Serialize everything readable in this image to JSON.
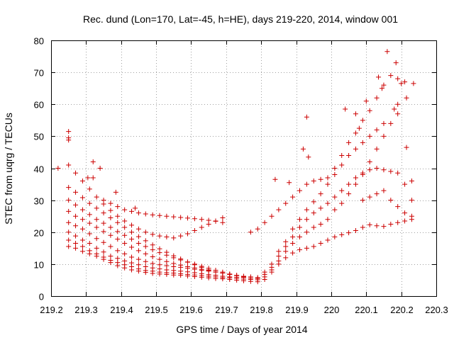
{
  "chart_data": {
    "type": "scatter",
    "title": "Rec. dund (Lon=170, Lat=-45, h=HE), days 219-220, 2014, window 001",
    "xlabel": "GPS time / Days of year 2014",
    "ylabel": "STEC from uqrg / TECUs",
    "xlim": [
      219.2,
      220.3
    ],
    "ylim": [
      0,
      80
    ],
    "xticks": [
      "219.2",
      "219.3",
      "219.4",
      "219.5",
      "219.6",
      "219.7",
      "219.8",
      "219.9",
      "220",
      "220.1",
      "220.2",
      "220.3"
    ],
    "yticks": [
      "0",
      "10",
      "20",
      "30",
      "40",
      "50",
      "60",
      "70",
      "80"
    ],
    "grid": true,
    "marker": "plus",
    "color": "#cc0000",
    "series": [
      {
        "name": "",
        "tracks": [
          {
            "x": [
              219.25,
              219.27,
              219.29,
              219.31,
              219.33,
              219.35,
              219.37,
              219.39,
              219.41,
              219.43,
              219.45,
              219.47,
              219.49,
              219.51,
              219.53,
              219.55,
              219.57,
              219.59,
              219.61,
              219.63,
              219.65,
              219.67,
              219.69,
              219.71,
              219.73,
              219.75,
              219.77,
              219.79,
              219.81,
              219.83,
              219.85,
              219.87,
              219.89,
              219.91,
              219.93,
              219.95,
              219.97,
              219.99,
              220.01,
              220.03,
              220.05,
              220.07,
              220.09,
              220.11,
              220.13,
              220.15,
              220.17,
              220.19,
              220.21,
              220.23
            ],
            "y": [
              15.5,
              15,
              14,
              13.2,
              12.5,
              11.5,
              10.5,
              9.5,
              8.8,
              8.2,
              7.8,
              7.4,
              7.1,
              6.9,
              6.8,
              6.6,
              6.5,
              6.3,
              6.1,
              5.9,
              5.7,
              5.5,
              5.4,
              5.2,
              5.0,
              4.8,
              4.6,
              4.5,
              5.2,
              7.5,
              10,
              12,
              13.5,
              14.5,
              15,
              15.5,
              16.5,
              17.5,
              18.5,
              19.2,
              19.8,
              20.5,
              21.5,
              22.3,
              22.0,
              21.8,
              22.5,
              23,
              23.5,
              24
            ]
          },
          {
            "x": [
              219.25,
              219.27,
              219.29,
              219.31,
              219.33,
              219.35,
              219.37,
              219.39,
              219.41,
              219.43,
              219.45,
              219.47,
              219.49,
              219.51,
              219.53,
              219.55,
              219.57,
              219.59,
              219.61,
              219.63,
              219.65,
              219.67,
              219.69,
              219.71,
              219.73,
              219.75,
              219.77,
              219.79,
              219.81,
              219.83,
              219.85,
              219.87,
              219.89,
              219.91,
              219.93,
              219.95,
              219.97,
              219.99
            ],
            "y": [
              17.5,
              16.5,
              15.5,
              14.2,
              13.2,
              12.2,
              11.2,
              10.5,
              9.8,
              9.2,
              8.5,
              8.0,
              7.8,
              7.5,
              7.3,
              7.2,
              7.0,
              6.8,
              6.6,
              6.4,
              6.2,
              6.0,
              5.8,
              5.7,
              5.5,
              5.3,
              5.2,
              5.1,
              6.0,
              8.2,
              11,
              14,
              16.5,
              18.5,
              20,
              21.5,
              22.5,
              24
            ]
          },
          {
            "x": [
              219.25,
              219.27,
              219.29,
              219.31,
              219.33,
              219.35,
              219.37,
              219.39,
              219.41,
              219.43,
              219.45,
              219.47,
              219.49,
              219.51,
              219.53,
              219.55,
              219.57,
              219.59,
              219.61,
              219.63,
              219.65,
              219.67,
              219.69,
              219.71,
              219.73,
              219.75,
              219.77,
              219.79,
              219.81,
              219.83,
              219.85,
              219.87,
              219.89,
              219.91,
              219.93,
              219.95,
              219.97,
              219.99,
              220.01,
              220.03,
              220.05,
              220.07,
              220.09,
              220.11,
              220.13,
              220.15,
              220.17,
              220.19
            ],
            "y": [
              20,
              18.8,
              17.5,
              16.5,
              15.0,
              13.8,
              12.5,
              11.8,
              11.0,
              10.4,
              9.8,
              9.2,
              8.8,
              8.5,
              8.2,
              8.0,
              7.8,
              7.6,
              7.3,
              7.0,
              6.7,
              6.5,
              6.2,
              6.0,
              5.9,
              5.8,
              5.6,
              5.5,
              6.8,
              9,
              12.5,
              15.5,
              18.5,
              21.5,
              24,
              26,
              27.5,
              29,
              31,
              33,
              35,
              37,
              38.5,
              39.5,
              40,
              39.5,
              39,
              38.5
            ]
          },
          {
            "x": [
              219.25,
              219.27,
              219.29,
              219.31,
              219.33,
              219.35,
              219.37,
              219.39,
              219.41,
              219.43,
              219.45,
              219.47,
              219.49,
              219.51,
              219.53,
              219.55,
              219.57,
              219.59,
              219.61,
              219.63,
              219.65,
              219.67,
              219.69,
              219.71,
              219.73,
              219.75,
              219.77,
              219.79,
              219.81,
              219.83,
              219.85,
              219.87,
              219.89,
              219.91,
              219.93,
              219.95,
              219.97,
              219.99,
              220.01,
              220.03,
              220.05,
              220.07,
              220.09,
              220.11,
              220.13,
              220.15
            ],
            "y": [
              23,
              22,
              21,
              19.5,
              18.0,
              16.8,
              15.5,
              14.2,
              13.2,
              12.2,
              11.5,
              10.8,
              10.2,
              9.8,
              9.5,
              9.2,
              9.0,
              8.7,
              8.4,
              8.1,
              7.8,
              7.5,
              7.2,
              6.8,
              6.5,
              6.2,
              6.0,
              5.8,
              7.5,
              10,
              14,
              17,
              21,
              24,
              27,
              29.5,
              32,
              35,
              38,
              41,
              44,
              46,
              48,
              50,
              52,
              54
            ]
          },
          {
            "x": [
              219.25,
              219.27,
              219.29,
              219.31,
              219.33,
              219.35,
              219.37,
              219.39,
              219.41,
              219.43,
              219.45,
              219.47,
              219.49,
              219.51,
              219.53,
              219.55,
              219.57,
              219.59,
              219.61,
              219.63,
              219.65,
              219.67,
              219.69,
              219.71,
              219.73,
              219.75
            ],
            "y": [
              26.5,
              25.0,
              24,
              22.8,
              21.5,
              20.2,
              19.0,
              17.8,
              16.5,
              15.3,
              14.2,
              13.2,
              12.3,
              11.5,
              10.8,
              10.2,
              9.7,
              9.2,
              8.8,
              8.4,
              8.0,
              7.6,
              7.2,
              6.8,
              6.4,
              6.0
            ]
          },
          {
            "x": [
              219.25,
              219.27,
              219.29,
              219.31,
              219.33,
              219.35,
              219.37,
              219.39,
              219.41,
              219.43,
              219.45,
              219.47,
              219.49,
              219.51,
              219.53,
              219.55,
              219.57,
              219.59,
              219.61,
              219.63,
              219.65,
              219.67,
              219.69,
              219.71
            ],
            "y": [
              30,
              28.5,
              27,
              25.5,
              24.0,
              22.8,
              21.5,
              20.2,
              19.0,
              17.8,
              16.5,
              15.5,
              14.5,
              13.6,
              12.8,
              12.0,
              11.3,
              10.6,
              10.0,
              9.3,
              8.7,
              8.1,
              7.5,
              6.9
            ]
          },
          {
            "x": [
              219.25,
              219.27,
              219.29,
              219.31,
              219.33,
              219.35,
              219.37,
              219.39,
              219.41,
              219.43,
              219.45,
              219.47,
              219.49,
              219.51,
              219.53,
              219.55,
              219.57,
              219.59,
              219.61,
              219.63,
              219.65
            ],
            "y": [
              34,
              32.5,
              30.8,
              29,
              27.5,
              26.0,
              24.5,
              23.0,
              21.5,
              20.0,
              18.6,
              17.3,
              16.0,
              14.8,
              13.7,
              12.6,
              11.6,
              10.7,
              9.8,
              9.0,
              8.2
            ]
          },
          {
            "x": [
              219.25,
              219.27,
              219.29,
              219.31,
              219.33,
              219.35,
              219.37,
              219.39,
              219.41,
              219.43,
              219.45,
              219.47,
              219.49,
              219.51,
              219.53,
              219.55,
              219.57,
              219.59,
              219.61,
              219.63,
              219.65,
              219.67,
              219.69
            ],
            "y": [
              41,
              38.5,
              36,
              33.5,
              31.0,
              28.8,
              26.8,
              25.0,
              23.5,
              22.2,
              21.0,
              20.0,
              19.3,
              18.8,
              18.5,
              18.2,
              18.8,
              19.5,
              20.5,
              21.5,
              22.5,
              23.5,
              24.5
            ]
          },
          {
            "x": [
              219.35,
              219.37,
              219.39,
              219.41,
              219.43,
              219.45,
              219.47,
              219.49,
              219.51,
              219.53,
              219.55,
              219.57,
              219.59,
              219.61,
              219.63,
              219.65,
              219.67,
              219.69
            ],
            "y": [
              30,
              29,
              28,
              27,
              26.5,
              26,
              25.7,
              25.4,
              25.2,
              25,
              24.8,
              24.6,
              24.4,
              24.2,
              24.0,
              23.7,
              23.4,
              23.0
            ]
          },
          {
            "x": [
              219.77,
              219.79,
              219.81,
              219.83,
              219.85,
              219.87,
              219.89,
              219.91,
              219.93,
              219.95,
              219.97,
              219.99,
              220.01,
              220.03,
              220.05,
              220.07,
              220.09,
              220.11,
              220.13,
              220.15,
              220.17,
              220.19,
              220.21
            ],
            "y": [
              20,
              21,
              23,
              25,
              27,
              29,
              31,
              33,
              35,
              36,
              36.5,
              37,
              40,
              44,
              48,
              51,
              55,
              58,
              62,
              66,
              69,
              68,
              67
            ]
          },
          {
            "x": [
              220.01,
              220.03,
              220.05,
              220.07,
              220.09,
              220.11,
              220.13,
              220.15,
              220.17,
              220.19,
              220.21,
              220.23
            ],
            "y": [
              27,
              29,
              32,
              35,
              38,
              42,
              46,
              50,
              54,
              57,
              35,
              30
            ]
          },
          {
            "x": [
              220.09,
              220.11,
              220.13,
              220.15,
              220.17,
              220.19,
              220.21,
              220.23
            ],
            "y": [
              30,
              31,
              32,
              33,
              30,
              28,
              26,
              25
            ]
          }
        ],
        "points": [
          [
            219.25,
            49.5
          ],
          [
            219.25,
            51.5
          ],
          [
            219.25,
            48.8
          ],
          [
            219.32,
            42
          ],
          [
            219.34,
            40
          ],
          [
            219.22,
            40
          ],
          [
            219.32,
            37
          ],
          [
            219.305,
            37
          ],
          [
            219.385,
            32.5
          ],
          [
            219.44,
            27.5
          ],
          [
            219.92,
            46
          ],
          [
            219.93,
            56
          ],
          [
            219.935,
            43.5
          ],
          [
            219.88,
            35.5
          ],
          [
            219.84,
            36.5
          ],
          [
            220.16,
            76.5
          ],
          [
            220.185,
            73
          ],
          [
            220.135,
            68.5
          ],
          [
            220.2,
            66.5
          ],
          [
            220.235,
            66.5
          ],
          [
            220.145,
            65
          ],
          [
            220.19,
            60
          ],
          [
            220.18,
            58.5
          ],
          [
            220.215,
            62
          ],
          [
            220.215,
            46.5
          ],
          [
            220.1,
            61
          ],
          [
            220.07,
            57
          ],
          [
            220.04,
            58.5
          ],
          [
            220.08,
            52.5
          ],
          [
            220.23,
            36
          ]
        ]
      }
    ]
  }
}
